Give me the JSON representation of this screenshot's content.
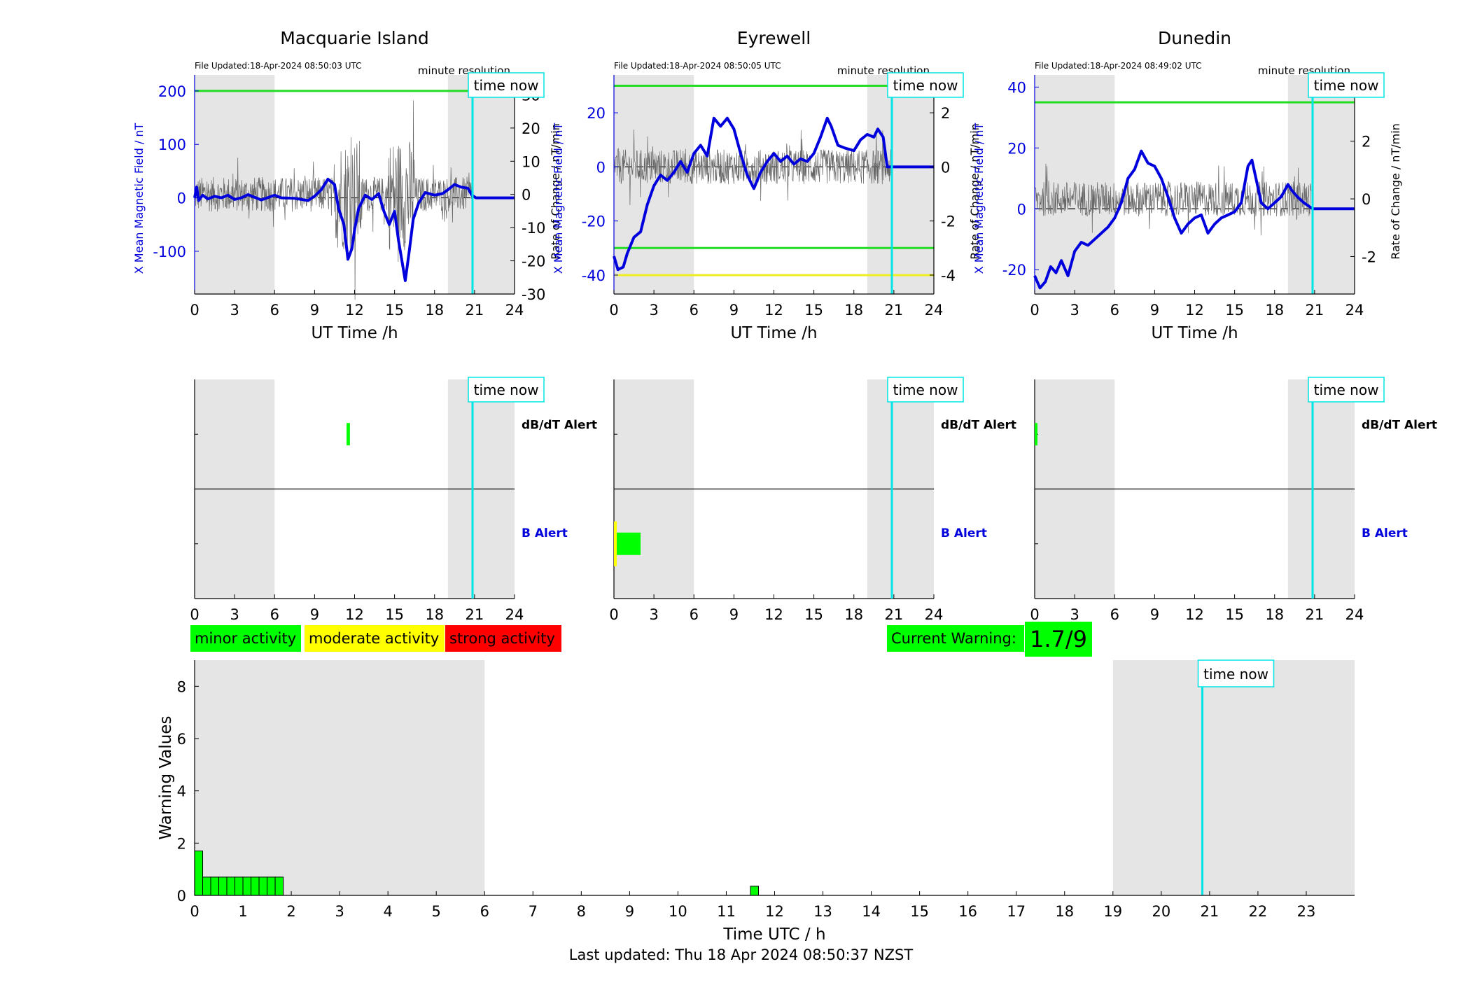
{
  "stations": [
    {
      "name": "Macquarie Island",
      "file_updated": "File Updated:18-Apr-2024 08:50:03 UTC",
      "resolution": "minute resolution",
      "now_label": "time now",
      "now_hour": 20.85,
      "xlabel": "UT Time /h",
      "ylabel_left": "X Mean Magnetic Field / nT",
      "ylabel_right": "Rate of Change / nT/min",
      "x_ticks": [
        "0",
        "3",
        "6",
        "9",
        "12",
        "15",
        "18",
        "21",
        "24"
      ],
      "ylim_left": [
        -180,
        230
      ],
      "yticks_left": [
        -100,
        0,
        100,
        200
      ],
      "ylim_right": [
        -30,
        36
      ],
      "yticks_right": [
        -30,
        -20,
        -10,
        0,
        10,
        20,
        30
      ],
      "threshold_lines": [
        {
          "value": 200,
          "color": "#22dd22"
        }
      ],
      "x_field_series": [
        [
          0,
          0
        ],
        [
          0.15,
          20
        ],
        [
          0.3,
          -5
        ],
        [
          0.6,
          5
        ],
        [
          1,
          -2
        ],
        [
          1.5,
          3
        ],
        [
          2,
          0
        ],
        [
          2.5,
          5
        ],
        [
          3,
          -3
        ],
        [
          3.5,
          0
        ],
        [
          4,
          6
        ],
        [
          5,
          -4
        ],
        [
          6,
          5
        ],
        [
          6.5,
          0
        ],
        [
          7.5,
          -1
        ],
        [
          8.5,
          -5
        ],
        [
          9,
          3
        ],
        [
          9.5,
          15
        ],
        [
          10,
          35
        ],
        [
          10.5,
          25
        ],
        [
          10.8,
          -20
        ],
        [
          11.2,
          -50
        ],
        [
          11.5,
          -115
        ],
        [
          11.8,
          -95
        ],
        [
          12,
          -60
        ],
        [
          12.3,
          -20
        ],
        [
          12.8,
          5
        ],
        [
          13.3,
          -3
        ],
        [
          13.8,
          8
        ],
        [
          14.2,
          -25
        ],
        [
          14.6,
          -50
        ],
        [
          15,
          -25
        ],
        [
          15.3,
          -80
        ],
        [
          15.8,
          -155
        ],
        [
          16.1,
          -100
        ],
        [
          16.4,
          -40
        ],
        [
          16.8,
          -10
        ],
        [
          17.3,
          10
        ],
        [
          18,
          5
        ],
        [
          18.6,
          8
        ],
        [
          19,
          15
        ],
        [
          19.5,
          25
        ],
        [
          20,
          20
        ],
        [
          20.5,
          18
        ],
        [
          20.8,
          5
        ],
        [
          21.1,
          0
        ],
        [
          24,
          0
        ]
      ],
      "dbdt_bars": [
        {
          "start": 11.4,
          "end": 11.65,
          "level": "minor"
        }
      ],
      "b_bars": []
    },
    {
      "name": "Eyrewell",
      "file_updated": "File Updated:18-Apr-2024 08:50:05 UTC",
      "resolution": "minute resolution",
      "now_label": "time now",
      "now_hour": 20.85,
      "xlabel": "UT Time /h",
      "ylabel_left": "X Mean Magnetic Field / nT",
      "ylabel_right": "Rate of Change / nT/min",
      "x_ticks": [
        "0",
        "3",
        "6",
        "9",
        "12",
        "15",
        "18",
        "21",
        "24"
      ],
      "ylim_left": [
        -47,
        34
      ],
      "yticks_left": [
        -40,
        -20,
        0,
        20
      ],
      "ylim_right": [
        -4.7,
        3.4
      ],
      "yticks_right": [
        -4,
        -2,
        0,
        2
      ],
      "threshold_lines": [
        {
          "value": 30,
          "color": "#22dd22"
        },
        {
          "value": -30,
          "color": "#22dd22"
        },
        {
          "value": -40,
          "color": "#eeee22"
        }
      ],
      "x_field_series": [
        [
          0,
          -33
        ],
        [
          0.3,
          -38
        ],
        [
          0.7,
          -37
        ],
        [
          1,
          -32
        ],
        [
          1.5,
          -26
        ],
        [
          2,
          -24
        ],
        [
          2.5,
          -14
        ],
        [
          3,
          -7
        ],
        [
          3.5,
          -3
        ],
        [
          4,
          -5
        ],
        [
          4.5,
          -2
        ],
        [
          5,
          2
        ],
        [
          5.5,
          -2
        ],
        [
          6,
          5
        ],
        [
          6.5,
          8
        ],
        [
          7,
          4
        ],
        [
          7.5,
          18
        ],
        [
          8,
          15
        ],
        [
          8.5,
          18
        ],
        [
          9,
          14
        ],
        [
          9.5,
          5
        ],
        [
          10,
          -3
        ],
        [
          10.5,
          -8
        ],
        [
          11,
          -2
        ],
        [
          11.5,
          2
        ],
        [
          12,
          5
        ],
        [
          12.5,
          2
        ],
        [
          13,
          4
        ],
        [
          13.5,
          1
        ],
        [
          14,
          3
        ],
        [
          14.5,
          2
        ],
        [
          15,
          5
        ],
        [
          15.5,
          11
        ],
        [
          16,
          18
        ],
        [
          16.3,
          15
        ],
        [
          16.8,
          8
        ],
        [
          17.3,
          7
        ],
        [
          18,
          6
        ],
        [
          18.5,
          10
        ],
        [
          19,
          12
        ],
        [
          19.5,
          11
        ],
        [
          19.8,
          14
        ],
        [
          20.2,
          11
        ],
        [
          20.5,
          0
        ],
        [
          20.85,
          0
        ],
        [
          24,
          0
        ]
      ],
      "dbdt_bars": [],
      "b_bars": [
        {
          "start": 0,
          "end": 2.0,
          "level": "minor"
        }
      ]
    },
    {
      "name": "Dunedin",
      "file_updated": "File Updated:18-Apr-2024 08:49:02 UTC",
      "resolution": "minute resolution",
      "now_label": "time now",
      "now_hour": 20.85,
      "xlabel": "UT Time /h",
      "ylabel_left": "X Mean Magnetic Field / nT",
      "ylabel_right": "Rate of Change / nT/min",
      "x_ticks": [
        "0",
        "3",
        "6",
        "9",
        "12",
        "15",
        "18",
        "21",
        "24"
      ],
      "ylim_left": [
        -28,
        44
      ],
      "yticks_left": [
        -20,
        0,
        20,
        40
      ],
      "ylim_right": [
        -3.3,
        4.3
      ],
      "yticks_right": [
        -2,
        0,
        2,
        4
      ],
      "threshold_lines": [
        {
          "value": 35,
          "color": "#22dd22"
        }
      ],
      "x_field_series": [
        [
          0,
          -22
        ],
        [
          0.4,
          -26
        ],
        [
          0.8,
          -24
        ],
        [
          1.2,
          -19
        ],
        [
          1.6,
          -21
        ],
        [
          2,
          -17
        ],
        [
          2.5,
          -22
        ],
        [
          3,
          -14
        ],
        [
          3.5,
          -11
        ],
        [
          4,
          -12
        ],
        [
          4.5,
          -10
        ],
        [
          5,
          -8
        ],
        [
          5.5,
          -6
        ],
        [
          6,
          -3
        ],
        [
          6.5,
          2
        ],
        [
          7,
          10
        ],
        [
          7.5,
          13
        ],
        [
          8,
          19
        ],
        [
          8.5,
          15
        ],
        [
          9,
          14
        ],
        [
          9.5,
          10
        ],
        [
          10,
          4
        ],
        [
          10.5,
          -3
        ],
        [
          11,
          -8
        ],
        [
          11.5,
          -5
        ],
        [
          12,
          -3
        ],
        [
          12.5,
          -2
        ],
        [
          13,
          -8
        ],
        [
          13.5,
          -5
        ],
        [
          14,
          -3
        ],
        [
          14.5,
          -2
        ],
        [
          15,
          -1
        ],
        [
          15.5,
          2
        ],
        [
          16,
          14
        ],
        [
          16.3,
          16
        ],
        [
          16.7,
          8
        ],
        [
          17,
          2
        ],
        [
          17.5,
          0
        ],
        [
          18,
          2
        ],
        [
          18.5,
          4
        ],
        [
          19,
          8
        ],
        [
          19.3,
          6
        ],
        [
          19.7,
          4
        ],
        [
          20.2,
          2
        ],
        [
          20.85,
          0
        ],
        [
          24,
          0
        ]
      ],
      "dbdt_bars": [
        {
          "start": 0,
          "end": 0.2,
          "level": "minor"
        }
      ],
      "b_bars": []
    }
  ],
  "alert_labels": {
    "dbdt": "dB/dT Alert",
    "b": "B Alert"
  },
  "legend": [
    {
      "label": "minor activity",
      "color": "#00ff00"
    },
    {
      "label": "moderate activity",
      "color": "#ffff00"
    },
    {
      "label": "strong activity",
      "color": "#ff0000"
    }
  ],
  "current_warning": {
    "label": "Current Warning:",
    "value": "1.7/9",
    "color": "#00ff00"
  },
  "chart_data": {
    "type": "bar",
    "xlabel": "Time UTC / h",
    "ylabel": "Warning Values",
    "xlim": [
      0,
      24
    ],
    "ylim": [
      0,
      9
    ],
    "x_ticks": [
      "0",
      "1",
      "2",
      "3",
      "4",
      "5",
      "6",
      "7",
      "8",
      "9",
      "10",
      "11",
      "12",
      "13",
      "14",
      "15",
      "16",
      "17",
      "18",
      "19",
      "20",
      "21",
      "22",
      "23"
    ],
    "y_ticks": [
      "0",
      "2",
      "4",
      "6",
      "8"
    ],
    "bar_width_h": 0.1667,
    "bars": [
      {
        "x": 0.0,
        "value": 1.7
      },
      {
        "x": 0.1667,
        "value": 0.7
      },
      {
        "x": 0.3333,
        "value": 0.7
      },
      {
        "x": 0.5,
        "value": 0.7
      },
      {
        "x": 0.6667,
        "value": 0.7
      },
      {
        "x": 0.8333,
        "value": 0.7
      },
      {
        "x": 1.0,
        "value": 0.7
      },
      {
        "x": 1.1667,
        "value": 0.7
      },
      {
        "x": 1.3333,
        "value": 0.7
      },
      {
        "x": 1.5,
        "value": 0.7
      },
      {
        "x": 1.6667,
        "value": 0.7
      },
      {
        "x": 11.5,
        "value": 0.35
      }
    ],
    "bar_color": "#00ff00",
    "night_bands": [
      [
        0,
        6
      ],
      [
        19,
        24
      ]
    ],
    "now_hour": 20.85,
    "now_label": "time now"
  },
  "footer": "Last updated: Thu 18 Apr 2024 08:50:37 NZST"
}
